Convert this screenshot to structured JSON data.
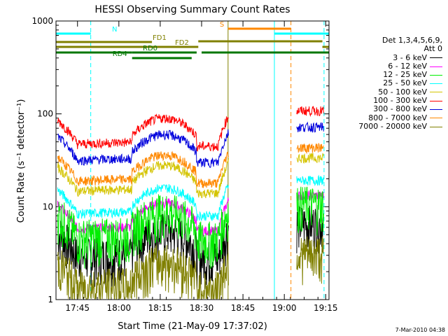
{
  "chart_data": {
    "type": "line",
    "title": "HESSI Observing Summary Count Rates",
    "xlabel": "Start Time (21-May-09 17:37:02)",
    "ylabel": "Count Rate (s⁻¹ detector⁻¹)",
    "y_scale": "log",
    "ylim": [
      1,
      1000
    ],
    "x_range_minutes": [
      17.62,
      19.27
    ],
    "x_ticks": [
      {
        "t": 17.75,
        "label": "17:45"
      },
      {
        "t": 18.0,
        "label": "18:00"
      },
      {
        "t": 18.25,
        "label": "18:15"
      },
      {
        "t": 18.5,
        "label": "18:30"
      },
      {
        "t": 18.75,
        "label": "18:45"
      },
      {
        "t": 19.0,
        "label": "19:00"
      },
      {
        "t": 19.25,
        "label": "19:15"
      }
    ],
    "y_ticks": [
      {
        "v": 1,
        "label": "1"
      },
      {
        "v": 10,
        "label": "10"
      },
      {
        "v": 100,
        "label": "100"
      },
      {
        "v": 1000,
        "label": "1000"
      }
    ],
    "legend_header": [
      "Det 1,3,4,5,6,9,",
      "Att 0"
    ],
    "series": [
      {
        "name": "3 - 6 keV",
        "color": "#000000",
        "base": 2.8
      },
      {
        "name": "6 - 12 keV",
        "color": "#ff00ff",
        "base": 5.5
      },
      {
        "name": "12 - 25 keV",
        "color": "#00ee00",
        "base": 4.5
      },
      {
        "name": "25 - 50 keV",
        "color": "#00ffff",
        "base": 8
      },
      {
        "name": "50 - 100 keV",
        "color": "#d4c400",
        "base": 14
      },
      {
        "name": "100 - 300 keV",
        "color": "#ff0000",
        "base": 45
      },
      {
        "name": "300 - 800 keV",
        "color": "#0000dd",
        "base": 30
      },
      {
        "name": "800 - 7000 keV",
        "color": "#ff8800",
        "base": 18
      },
      {
        "name": "7000 - 20000 keV",
        "color": "#808000",
        "base": 1.3
      }
    ],
    "flag_bars": [
      {
        "label": "N",
        "color": "#00ffff",
        "t0": 17.62,
        "t1": 17.83
      },
      {
        "label": "",
        "color": "#00ffff",
        "t0": 18.94,
        "t1": 19.27
      },
      {
        "label": "S",
        "color": "#ff8800",
        "t0": 18.66,
        "t1": 19.04
      },
      {
        "label": "FD1",
        "color": "#808000",
        "t0": 17.62,
        "t1": 18.2
      },
      {
        "label": "FD2",
        "color": "#808000",
        "t0": 17.62,
        "t1": 18.48
      },
      {
        "label": "",
        "color": "#808000",
        "t0": 18.48,
        "t1": 19.23
      },
      {
        "label": "",
        "color": "#808000",
        "t0": 19.23,
        "t1": 19.27
      },
      {
        "label": "RD0",
        "color": "#007700",
        "t0": 17.62,
        "t1": 18.08
      },
      {
        "label": "",
        "color": "#007700",
        "t0": 18.08,
        "t1": 18.47
      },
      {
        "label": "",
        "color": "#007700",
        "t0": 18.5,
        "t1": 19.27
      },
      {
        "label": "RD4",
        "color": "#007700",
        "t0": 18.08,
        "t1": 18.44
      }
    ],
    "vertical_markers": [
      {
        "t": 17.62,
        "color": "#00ffff",
        "style": "solid"
      },
      {
        "t": 17.83,
        "color": "#00ffff",
        "style": "dashed"
      },
      {
        "t": 18.66,
        "color": "#808000",
        "style": "solid"
      },
      {
        "t": 18.94,
        "color": "#00ffff",
        "style": "solid"
      },
      {
        "t": 19.04,
        "color": "#ff8800",
        "style": "dashed"
      },
      {
        "t": 19.24,
        "color": "#00ffff",
        "style": "dashed"
      }
    ],
    "grid": false,
    "legend_position": "right"
  },
  "footer": {
    "date_stamp": "7-Mar-2010 04:38"
  }
}
